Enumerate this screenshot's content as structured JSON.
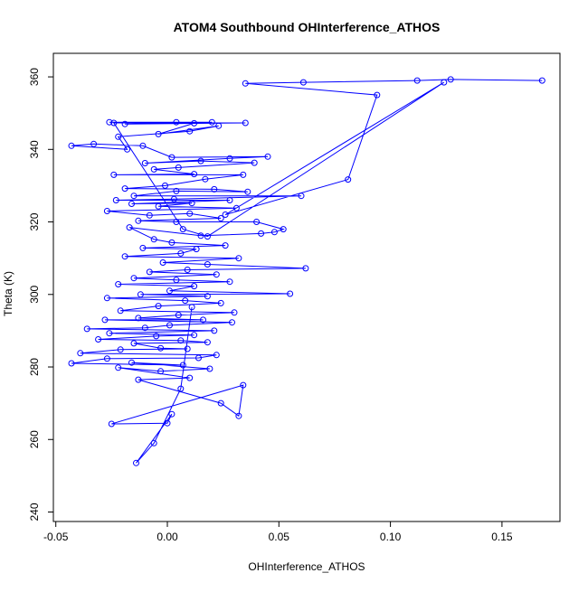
{
  "chart_data": {
    "type": "line",
    "title": "ATOM4 Southbound OHInterference_ATHOS",
    "xlabel": "OHInterference_ATHOS",
    "ylabel": "Theta (K)",
    "xlim": [
      -0.05,
      0.17
    ],
    "ylim": [
      240,
      365
    ],
    "xticks": [
      -0.05,
      0.0,
      0.05,
      0.1,
      0.15
    ],
    "xtick_labels": [
      "-0.05",
      "0.00",
      "0.05",
      "0.10",
      "0.15"
    ],
    "yticks": [
      240,
      260,
      280,
      300,
      320,
      340,
      360
    ],
    "ytick_labels": [
      "240",
      "260",
      "280",
      "300",
      "320",
      "340",
      "360"
    ],
    "grid": false,
    "legend": "none",
    "marker": "open-circle",
    "color": "#0000ff",
    "series": [
      {
        "points": [
          [
            0.168,
            359.0
          ],
          [
            0.127,
            359.3
          ],
          [
            0.112,
            359.0
          ],
          [
            0.061,
            358.5
          ],
          [
            0.035,
            358.2
          ],
          [
            0.094,
            355.0
          ],
          [
            0.081,
            331.7
          ],
          [
            0.026,
            322.0
          ],
          [
            0.124,
            358.5
          ],
          [
            0.018,
            316.0
          ],
          [
            0.007,
            318.0
          ],
          [
            -0.024,
            347.3
          ],
          [
            0.035,
            347.3
          ],
          [
            -0.019,
            347.0
          ],
          [
            0.02,
            347.5
          ],
          [
            -0.026,
            347.5
          ],
          [
            0.004,
            347.5
          ],
          [
            0.012,
            347.2
          ],
          [
            -0.004,
            344.2
          ],
          [
            0.023,
            346.5
          ],
          [
            0.01,
            345.0
          ],
          [
            -0.022,
            343.5
          ],
          [
            -0.018,
            340.0
          ],
          [
            -0.043,
            341.0
          ],
          [
            -0.033,
            341.5
          ],
          [
            -0.011,
            341.0
          ],
          [
            0.002,
            337.8
          ],
          [
            0.045,
            338.0
          ],
          [
            0.028,
            337.5
          ],
          [
            -0.01,
            336.2
          ],
          [
            0.015,
            336.8
          ],
          [
            0.039,
            336.3
          ],
          [
            0.005,
            335.0
          ],
          [
            -0.006,
            334.5
          ],
          [
            0.012,
            333.2
          ],
          [
            -0.024,
            333.0
          ],
          [
            0.034,
            333.0
          ],
          [
            0.017,
            331.8
          ],
          [
            -0.001,
            330.0
          ],
          [
            -0.019,
            329.2
          ],
          [
            0.021,
            329.0
          ],
          [
            0.036,
            328.3
          ],
          [
            0.004,
            328.5
          ],
          [
            -0.015,
            327.2
          ],
          [
            0.06,
            327.2
          ],
          [
            0.003,
            326.3
          ],
          [
            -0.023,
            326.0
          ],
          [
            0.028,
            326.0
          ],
          [
            -0.016,
            325.0
          ],
          [
            0.011,
            325.2
          ],
          [
            -0.004,
            324.3
          ],
          [
            0.031,
            323.8
          ],
          [
            -0.027,
            323.0
          ],
          [
            -0.008,
            321.8
          ],
          [
            0.01,
            322.3
          ],
          [
            0.024,
            321.0
          ],
          [
            -0.013,
            320.3
          ],
          [
            0.004,
            320.0
          ],
          [
            0.04,
            320.0
          ],
          [
            0.052,
            318.0
          ],
          [
            0.048,
            317.2
          ],
          [
            0.042,
            316.8
          ],
          [
            0.015,
            316.2
          ],
          [
            -0.017,
            318.5
          ],
          [
            -0.006,
            315.2
          ],
          [
            0.002,
            314.3
          ],
          [
            0.026,
            313.5
          ],
          [
            -0.011,
            312.8
          ],
          [
            0.013,
            312.5
          ],
          [
            0.006,
            311.3
          ],
          [
            -0.019,
            310.5
          ],
          [
            0.032,
            310.0
          ],
          [
            -0.002,
            308.8
          ],
          [
            0.018,
            308.3
          ],
          [
            0.062,
            307.2
          ],
          [
            0.009,
            306.8
          ],
          [
            -0.008,
            306.2
          ],
          [
            0.022,
            305.5
          ],
          [
            -0.015,
            304.5
          ],
          [
            0.004,
            304.0
          ],
          [
            0.028,
            303.5
          ],
          [
            -0.022,
            302.8
          ],
          [
            0.012,
            302.3
          ],
          [
            0.001,
            301.0
          ],
          [
            0.055,
            300.2
          ],
          [
            -0.012,
            300.0
          ],
          [
            0.018,
            299.5
          ],
          [
            -0.027,
            299.0
          ],
          [
            0.008,
            298.3
          ],
          [
            0.024,
            297.6
          ],
          [
            -0.004,
            296.8
          ],
          [
            -0.021,
            295.5
          ],
          [
            0.03,
            295.0
          ],
          [
            0.005,
            294.3
          ],
          [
            -0.013,
            293.5
          ],
          [
            0.016,
            293.0
          ],
          [
            -0.028,
            293.0
          ],
          [
            0.029,
            292.3
          ],
          [
            0.001,
            291.5
          ],
          [
            -0.01,
            290.8
          ],
          [
            -0.036,
            290.5
          ],
          [
            0.021,
            290.0
          ],
          [
            -0.026,
            289.3
          ],
          [
            0.012,
            288.8
          ],
          [
            -0.005,
            288.5
          ],
          [
            -0.031,
            287.6
          ],
          [
            0.006,
            287.3
          ],
          [
            0.018,
            286.8
          ],
          [
            -0.015,
            286.5
          ],
          [
            -0.003,
            285.2
          ],
          [
            0.009,
            285.0
          ],
          [
            -0.021,
            284.8
          ],
          [
            -0.039,
            283.8
          ],
          [
            0.022,
            283.3
          ],
          [
            0.014,
            282.5
          ],
          [
            -0.027,
            282.3
          ],
          [
            -0.043,
            281.0
          ],
          [
            0.007,
            280.5
          ],
          [
            -0.016,
            281.2
          ],
          [
            0.019,
            279.5
          ],
          [
            -0.003,
            278.8
          ],
          [
            -0.022,
            279.8
          ],
          [
            0.01,
            277.0
          ],
          [
            -0.013,
            276.5
          ],
          [
            0.024,
            270.0
          ],
          [
            0.032,
            266.5
          ],
          [
            0.034,
            275.0
          ],
          [
            -0.025,
            264.3
          ],
          [
            0.0,
            264.5
          ],
          [
            0.002,
            267.0
          ],
          [
            -0.014,
            253.5
          ],
          [
            -0.006,
            259.0
          ],
          [
            0.006,
            274.0
          ],
          [
            0.011,
            296.5
          ]
        ]
      }
    ]
  }
}
